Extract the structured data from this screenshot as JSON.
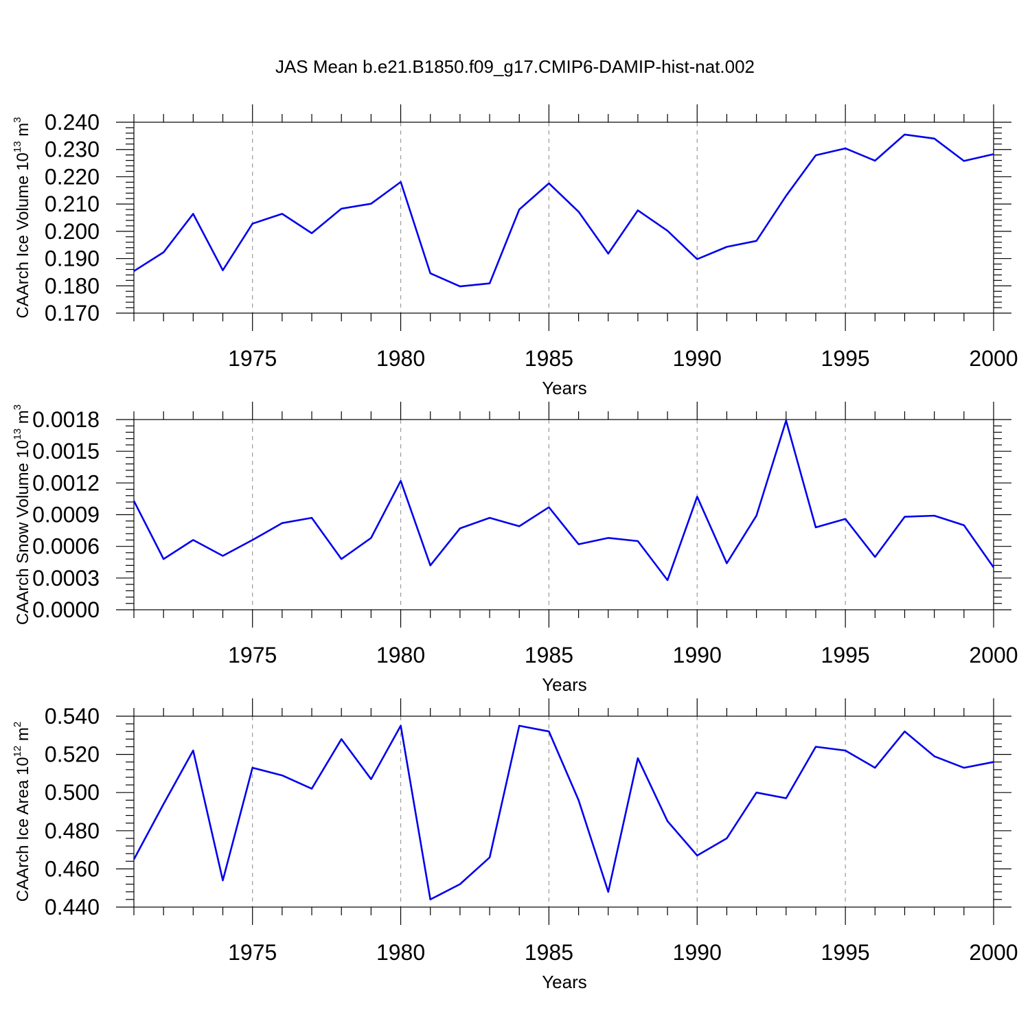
{
  "title": "JAS Mean b.e21.B1850.f09_g17.CMIP6-DAMIP-hist-nat.002",
  "line_color": "#0000ee",
  "chart_data": [
    {
      "type": "line",
      "title": "JAS Mean b.e21.B1850.f09_g17.CMIP6-DAMIP-hist-nat.002",
      "ylabel": "CAArch Ice Volume 10",
      "ylabel_exp": "13",
      "ylabel_unit": "m",
      "ylabel_unit_exp": "3",
      "xlabel": "Years",
      "xlim": [
        1971,
        2000
      ],
      "ylim": [
        0.17,
        0.24
      ],
      "yticks": [
        0.17,
        0.18,
        0.19,
        0.2,
        0.21,
        0.22,
        0.23,
        0.24
      ],
      "ytick_labels": [
        "0.170",
        "0.180",
        "0.190",
        "0.200",
        "0.210",
        "0.220",
        "0.230",
        "0.240"
      ],
      "xticks": [
        1975,
        1980,
        1985,
        1990,
        1995,
        2000
      ],
      "xtick_labels": [
        "1975",
        "1980",
        "1985",
        "1990",
        "1995",
        "2000"
      ],
      "x": [
        1971,
        1972,
        1973,
        1974,
        1975,
        1976,
        1977,
        1978,
        1979,
        1980,
        1981,
        1982,
        1983,
        1984,
        1985,
        1986,
        1987,
        1988,
        1989,
        1990,
        1991,
        1992,
        1993,
        1994,
        1995,
        1996,
        1997,
        1998,
        1999,
        2000
      ],
      "values": [
        0.1854,
        0.1923,
        0.2064,
        0.1857,
        0.2028,
        0.2064,
        0.1993,
        0.2083,
        0.2101,
        0.2181,
        0.1846,
        0.1798,
        0.1809,
        0.208,
        0.2176,
        0.2072,
        0.1918,
        0.2077,
        0.2002,
        0.1898,
        0.1943,
        0.1965,
        0.213,
        0.2279,
        0.2304,
        0.2259,
        0.2355,
        0.234,
        0.2258,
        0.2283
      ]
    },
    {
      "type": "line",
      "ylabel": "CAArch Snow Volume 10",
      "ylabel_exp": "13",
      "ylabel_unit": "m",
      "ylabel_unit_exp": "3",
      "xlabel": "Years",
      "xlim": [
        1971,
        2000
      ],
      "ylim": [
        0.0,
        0.0018
      ],
      "yticks": [
        0.0,
        0.0003,
        0.0006,
        0.0009,
        0.0012,
        0.0015,
        0.0018
      ],
      "ytick_labels": [
        "0.0000",
        "0.0003",
        "0.0006",
        "0.0009",
        "0.0012",
        "0.0015",
        "0.0018"
      ],
      "xticks": [
        1975,
        1980,
        1985,
        1990,
        1995,
        2000
      ],
      "xtick_labels": [
        "1975",
        "1980",
        "1985",
        "1990",
        "1995",
        "2000"
      ],
      "x": [
        1971,
        1972,
        1973,
        1974,
        1975,
        1976,
        1977,
        1978,
        1979,
        1980,
        1981,
        1982,
        1983,
        1984,
        1985,
        1986,
        1987,
        1988,
        1989,
        1990,
        1991,
        1992,
        1993,
        1994,
        1995,
        1996,
        1997,
        1998,
        1999,
        2000
      ],
      "values": [
        0.00103,
        0.00048,
        0.00066,
        0.00051,
        0.00066,
        0.00082,
        0.00087,
        0.00048,
        0.00068,
        0.00122,
        0.00042,
        0.00077,
        0.00087,
        0.00079,
        0.00097,
        0.00062,
        0.00068,
        0.00065,
        0.00028,
        0.00107,
        0.00044,
        0.00089,
        0.00179,
        0.00078,
        0.00086,
        0.0005,
        0.00088,
        0.00089,
        0.0008,
        0.0004
      ]
    },
    {
      "type": "line",
      "ylabel": "CAArch Ice Area 10",
      "ylabel_exp": "12",
      "ylabel_unit": "m",
      "ylabel_unit_exp": "2",
      "xlabel": "Years",
      "xlim": [
        1971,
        2000
      ],
      "ylim": [
        0.44,
        0.54
      ],
      "yticks": [
        0.44,
        0.46,
        0.48,
        0.5,
        0.52,
        0.54
      ],
      "ytick_labels": [
        "0.440",
        "0.460",
        "0.480",
        "0.500",
        "0.520",
        "0.540"
      ],
      "xticks": [
        1975,
        1980,
        1985,
        1990,
        1995,
        2000
      ],
      "xtick_labels": [
        "1975",
        "1980",
        "1985",
        "1990",
        "1995",
        "2000"
      ],
      "x": [
        1971,
        1972,
        1973,
        1974,
        1975,
        1976,
        1977,
        1978,
        1979,
        1980,
        1981,
        1982,
        1983,
        1984,
        1985,
        1986,
        1987,
        1988,
        1989,
        1990,
        1991,
        1992,
        1993,
        1994,
        1995,
        1996,
        1997,
        1998,
        1999,
        2000
      ],
      "values": [
        0.465,
        0.494,
        0.522,
        0.454,
        0.513,
        0.509,
        0.502,
        0.528,
        0.507,
        0.535,
        0.444,
        0.452,
        0.466,
        0.535,
        0.532,
        0.496,
        0.448,
        0.518,
        0.485,
        0.467,
        0.476,
        0.5,
        0.497,
        0.524,
        0.522,
        0.513,
        0.532,
        0.519,
        0.513,
        0.516
      ]
    }
  ]
}
